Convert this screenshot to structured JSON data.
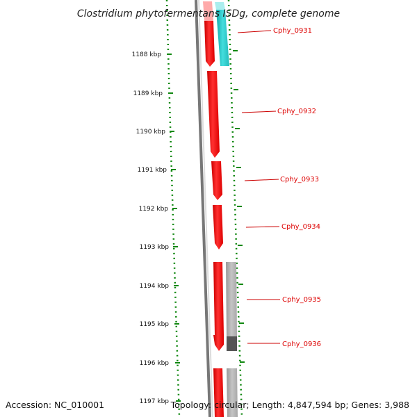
{
  "title": "Clostridium phytofermentans ISDg, complete genome",
  "accession": "Accession: NC_010001",
  "topology_info": "Topology: circular; Length: 4,847,594 bp; Genes: 3,988",
  "ruler_labels": [
    "1188 kbp",
    "1189 kbp",
    "1190 kbp",
    "1191 kbp",
    "1192 kbp",
    "1193 kbp",
    "1194 kbp",
    "1195 kbp",
    "1196 kbp",
    "1197 kbp"
  ],
  "genes": [
    {
      "name": "Cphy_0931",
      "label_color": "#dd0000"
    },
    {
      "name": "Cphy_0932",
      "label_color": "#dd0000"
    },
    {
      "name": "Cphy_0933",
      "label_color": "#dd0000"
    },
    {
      "name": "Cphy_0934",
      "label_color": "#dd0000"
    },
    {
      "name": "Cphy_0935",
      "label_color": "#dd0000"
    },
    {
      "name": "Cphy_0936",
      "label_color": "#dd0000"
    }
  ],
  "colors": {
    "cds": "#ff0000",
    "cds_light": "#ffaaaa",
    "cyan_feature": "#22cccc",
    "gray_feature": "#aaaaaa",
    "dark_gray_feature": "#555555",
    "backbone": "#777777",
    "ruler": "#118811"
  }
}
